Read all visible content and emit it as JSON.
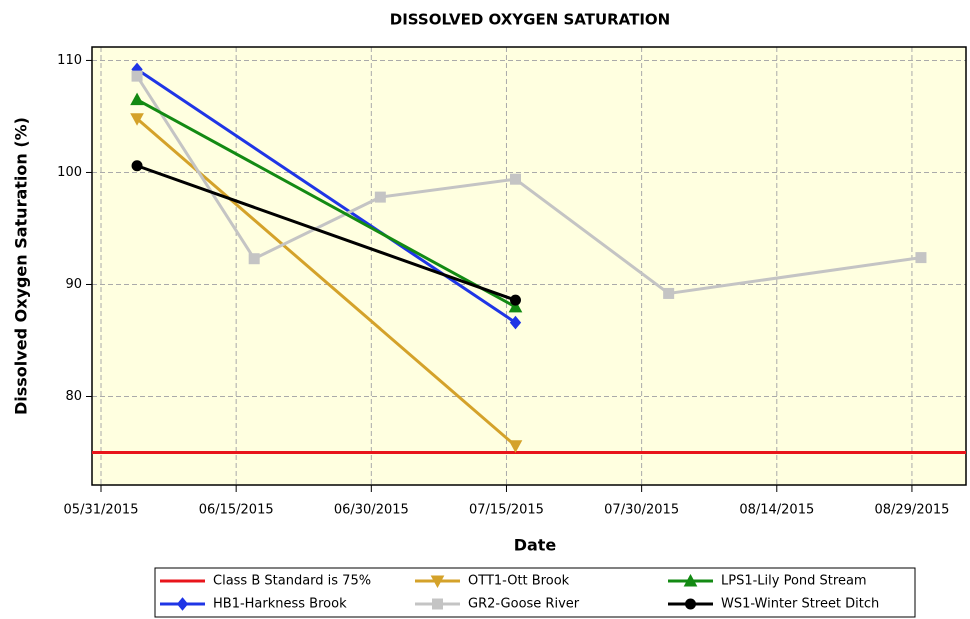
{
  "chart_data": {
    "type": "line",
    "title": "DISSOLVED OXYGEN SATURATION",
    "xlabel": "Date",
    "ylabel": "Dissolved Oxygen Saturation (%)",
    "xlim": [
      "05/30/2015",
      "09/04/2015"
    ],
    "xticks": [
      "05/31/2015",
      "06/15/2015",
      "06/30/2015",
      "07/15/2015",
      "07/30/2015",
      "08/14/2015",
      "08/29/2015"
    ],
    "ylim": [
      72.1,
      111.2
    ],
    "yticks": [
      80,
      90,
      100,
      110
    ],
    "grid": true,
    "background": "#ffffe0",
    "reference_lines": [
      {
        "name": "Class B Standard is 75%",
        "value": 75,
        "color": "#e8141b"
      }
    ],
    "series": [
      {
        "name": "HB1-Harkness Brook",
        "color": "#1f35e6",
        "marker": "diamond",
        "x": [
          "06/04/2015",
          "07/16/2015"
        ],
        "values": [
          109.2,
          86.6
        ]
      },
      {
        "name": "OTT1-Ott Brook",
        "color": "#d4a22a",
        "marker": "triangle-down",
        "x": [
          "06/04/2015",
          "07/16/2015"
        ],
        "values": [
          104.8,
          75.6
        ]
      },
      {
        "name": "GR2-Goose River",
        "color": "#c4c4c4",
        "marker": "square",
        "x": [
          "06/04/2015",
          "06/17/2015",
          "07/01/2015",
          "07/16/2015",
          "08/02/2015",
          "08/30/2015"
        ],
        "values": [
          108.6,
          92.3,
          97.8,
          99.4,
          89.2,
          92.4
        ]
      },
      {
        "name": "LPS1-Lily Pond Stream",
        "color": "#138a13",
        "marker": "triangle-up",
        "x": [
          "06/04/2015",
          "07/16/2015"
        ],
        "values": [
          106.5,
          88.0
        ]
      },
      {
        "name": "WS1-Winter Street Ditch",
        "color": "#000000",
        "marker": "circle",
        "x": [
          "06/04/2015",
          "07/16/2015"
        ],
        "values": [
          100.6,
          88.6
        ]
      }
    ]
  }
}
